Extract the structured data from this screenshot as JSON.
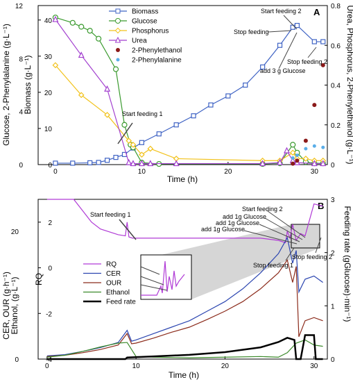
{
  "chart_data": [
    {
      "type": "line",
      "panel_label": "A",
      "xlabel": "Time (h)",
      "ylabel_left": "Glucose, 2-Phenylalanine (g·L⁻¹)",
      "ylabel_left_inner": "Biomass (g·L⁻¹)",
      "ylabel_right": "Urea, Phosphorus, 2-Phenylethanol (g·L⁻¹)",
      "xlim": [
        -2,
        31.5
      ],
      "x_ticks": [
        0,
        10,
        20,
        30
      ],
      "ylim_left_outer": [
        0,
        12
      ],
      "y_ticks_left_outer": [
        0,
        4,
        8,
        12
      ],
      "ylim_left_inner": [
        0,
        44
      ],
      "y_ticks_left_inner": [
        0,
        10,
        20,
        30,
        40
      ],
      "ylim_right": [
        0,
        0.8
      ],
      "y_ticks_right": [
        0,
        0.2,
        0.4,
        0.6,
        0.8
      ],
      "legend_position": "top-center",
      "series": [
        {
          "name": "Biomass",
          "axis": "left_inner",
          "color": "#3f63c4",
          "marker": "square",
          "x": [
            0,
            2,
            4,
            5,
            6,
            7,
            8,
            9,
            10,
            12,
            14,
            16,
            18,
            20,
            22,
            24,
            26,
            27.5,
            28,
            30,
            31
          ],
          "y": [
            0.4,
            0.4,
            0.5,
            0.6,
            1.2,
            2.0,
            2.8,
            4.6,
            6.1,
            8.5,
            11.0,
            13.5,
            16.5,
            19.0,
            22.0,
            27.0,
            33.0,
            38.0,
            38.5,
            34.0,
            34.0
          ]
        },
        {
          "name": "Glucose",
          "axis": "left_outer",
          "color": "#3a9a2e",
          "marker": "circle",
          "x": [
            0,
            2,
            3,
            4,
            5,
            7,
            8,
            8.7,
            9,
            10,
            12,
            24,
            26,
            27.5,
            28,
            29,
            30,
            31
          ],
          "y": [
            11.1,
            10.7,
            10.4,
            10.1,
            9.5,
            7.2,
            3.0,
            1.5,
            1.3,
            0.15,
            0.05,
            0.05,
            0.1,
            1.5,
            0.9,
            0.2,
            0.1,
            0.1
          ]
        },
        {
          "name": "Phosphorus",
          "axis": "right",
          "color": "#f2c21b",
          "marker": "diamond",
          "x": [
            0,
            3,
            6,
            8.5,
            9,
            10,
            11,
            14,
            24,
            26,
            27.5,
            28,
            29,
            30,
            31
          ],
          "y": [
            0.5,
            0.35,
            0.25,
            0.12,
            0.1,
            0.05,
            0.08,
            0.03,
            0.02,
            0.02,
            0.06,
            0.03,
            0.03,
            0.02,
            0.02
          ]
        },
        {
          "name": "Urea",
          "axis": "right",
          "color": "#a23fcf",
          "marker": "triangle",
          "x": [
            0,
            3,
            6,
            8.5,
            9,
            10,
            11,
            14,
            24,
            26,
            26.8,
            27.5,
            28,
            30,
            31
          ],
          "y": [
            0.73,
            0.55,
            0.38,
            0.01,
            0.005,
            0.005,
            0.005,
            0.005,
            0.005,
            0.01,
            0.07,
            0.02,
            0.01,
            0.005,
            0.005
          ]
        },
        {
          "name": "2-Phenylethanol",
          "axis": "right",
          "color": "#8b1a1a",
          "marker": "dot",
          "x": [
            27.5,
            28,
            29,
            30,
            31
          ],
          "y": [
            0.005,
            0.02,
            0.12,
            0.3,
            0.5
          ]
        },
        {
          "name": "2-Phenylalanine",
          "axis": "left_outer",
          "color": "#5aaee8",
          "marker": "star",
          "x": [
            27.5,
            28,
            29,
            30,
            31
          ],
          "y": [
            0.5,
            0.7,
            1.2,
            1.4,
            1.3
          ]
        }
      ],
      "annotations": [
        "Start feeding 1",
        "Start feeding 2",
        "Stop feeding",
        "add 3 g Glucose",
        "Stop feeding 2"
      ]
    },
    {
      "type": "line",
      "panel_label": "B",
      "xlabel": "Time (h)",
      "ylabel_left_outer": "CER, OUR (g·h⁻¹)",
      "ylabel_left_outer2": "Ethanol, (g·L⁻¹)",
      "ylabel_left_inner": "RQ",
      "ylabel_right": "Feeding rate (gGlucose)·min⁻¹)",
      "xlim": [
        -1,
        31.5
      ],
      "x_ticks": [
        0,
        10,
        20,
        30
      ],
      "ylim_left_outer": [
        0,
        25
      ],
      "y_ticks_left_outer": [
        0,
        20
      ],
      "ylim_left_inner": [
        -4,
        3
      ],
      "y_ticks_left_inner": [
        -4,
        -2,
        0,
        2
      ],
      "ylim_right": [
        0,
        3
      ],
      "y_ticks_right": [
        0,
        1,
        2,
        3
      ],
      "legend_position": "center-left",
      "series": [
        {
          "name": "RQ",
          "axis": "left_inner",
          "color": "#b03ad6",
          "x": [
            0,
            2,
            3,
            4,
            5,
            6,
            8,
            8.8,
            9,
            9.2,
            9.6,
            12,
            16,
            20,
            24,
            26,
            26.8,
            27,
            27.3,
            27.6,
            28,
            28.5,
            29,
            30,
            31
          ],
          "y": [
            3.0,
            3.0,
            3.0,
            2.5,
            2.0,
            1.7,
            1.45,
            1.4,
            2.0,
            1.35,
            1.3,
            1.3,
            1.3,
            1.3,
            1.3,
            1.2,
            1.1,
            1.6,
            1.3,
            1.9,
            1.2,
            1.5,
            1.4,
            2.8,
            2.7
          ]
        },
        {
          "name": "CER",
          "axis": "left_outer",
          "color": "#2b45b0",
          "x": [
            0,
            2,
            4,
            6,
            8,
            9,
            9.5,
            10,
            12,
            14,
            16,
            18,
            20,
            22,
            24,
            26,
            27,
            27.6,
            28,
            28.3,
            29,
            30,
            31
          ],
          "y": [
            0.5,
            0.7,
            1.2,
            1.8,
            2.6,
            4.5,
            2.8,
            3.0,
            4.0,
            5.0,
            6.0,
            7.5,
            9.0,
            11.0,
            13.5,
            16.5,
            19.0,
            15.0,
            17.0,
            10.5,
            12.5,
            13.0,
            12.0
          ]
        },
        {
          "name": "OUR",
          "axis": "left_outer",
          "color": "#8b2a1a",
          "x": [
            0,
            2,
            4,
            6,
            8,
            9,
            9.5,
            10,
            12,
            14,
            16,
            18,
            20,
            22,
            24,
            26,
            27,
            27.6,
            28,
            28.3,
            29,
            30,
            31
          ],
          "y": [
            0.4,
            0.6,
            1.0,
            1.5,
            2.2,
            4.0,
            2.4,
            2.5,
            3.3,
            4.2,
            5.0,
            6.2,
            7.5,
            9.0,
            11.0,
            13.5,
            15.5,
            12.0,
            14.5,
            3.5,
            6.0,
            6.5,
            6.0
          ]
        },
        {
          "name": "Ethanol",
          "axis": "left_outer",
          "color": "#3b8a2a",
          "x": [
            0,
            2,
            4,
            6,
            8,
            9,
            10,
            12,
            16,
            20,
            24,
            26,
            27,
            28,
            29,
            30,
            31
          ],
          "y": [
            0.3,
            0.6,
            1.2,
            1.9,
            2.5,
            2.6,
            0.4,
            0.3,
            0.2,
            0.3,
            0.4,
            0.3,
            1.0,
            2.5,
            3.0,
            2.2,
            2.0
          ]
        },
        {
          "name": "Feed rate",
          "axis": "right",
          "color": "#000000",
          "x": [
            0,
            8.8,
            9,
            12,
            16,
            20,
            24,
            26,
            27,
            27.8,
            28.0,
            28.5,
            29,
            30,
            30.2,
            31
          ],
          "y": [
            0,
            0,
            0.03,
            0.05,
            0.08,
            0.13,
            0.22,
            0.32,
            0.4,
            0.36,
            0,
            0,
            0.45,
            0.45,
            0,
            0
          ]
        }
      ],
      "annotations": [
        "Start feeding 1",
        "Start feeding 2",
        "add 1g Glucose",
        "add 1g Glucose",
        "add 1g Glucose",
        "Stop feeding 1",
        "Stop feeding 2"
      ]
    }
  ]
}
